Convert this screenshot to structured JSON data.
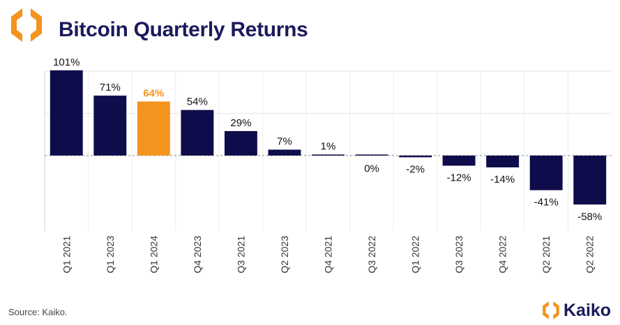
{
  "header": {
    "title": "Bitcoin Quarterly Returns"
  },
  "footer": {
    "source": "Source: Kaiko.",
    "brand": "Kaiko"
  },
  "icons": {
    "logo": "kaiko-logo-icon"
  },
  "colors": {
    "bar": "#0e0c4a",
    "highlight": "#f4931e",
    "title": "#1b1a5c",
    "logo": "#f4931e"
  },
  "chart_data": {
    "type": "bar",
    "title": "Bitcoin Quarterly Returns",
    "xlabel": "",
    "ylabel": "",
    "categories": [
      "Q1 2021",
      "Q1 2023",
      "Q1 2024",
      "Q4 2023",
      "Q3 2021",
      "Q2 2023",
      "Q4 2021",
      "Q3 2022",
      "Q1 2022",
      "Q3 2023",
      "Q4 2022",
      "Q2 2021",
      "Q2 2022"
    ],
    "values": [
      101,
      71,
      64,
      54,
      29,
      7,
      1,
      0,
      -2,
      -12,
      -14,
      -41,
      -58
    ],
    "labels": [
      "101%",
      "71%",
      "64%",
      "54%",
      "29%",
      "7%",
      "1%",
      "0%",
      "-2%",
      "-12%",
      "-14%",
      "-41%",
      "-58%"
    ],
    "highlight_index": 2,
    "ylim": [
      -90,
      100
    ],
    "grid": true,
    "legend": "none"
  }
}
